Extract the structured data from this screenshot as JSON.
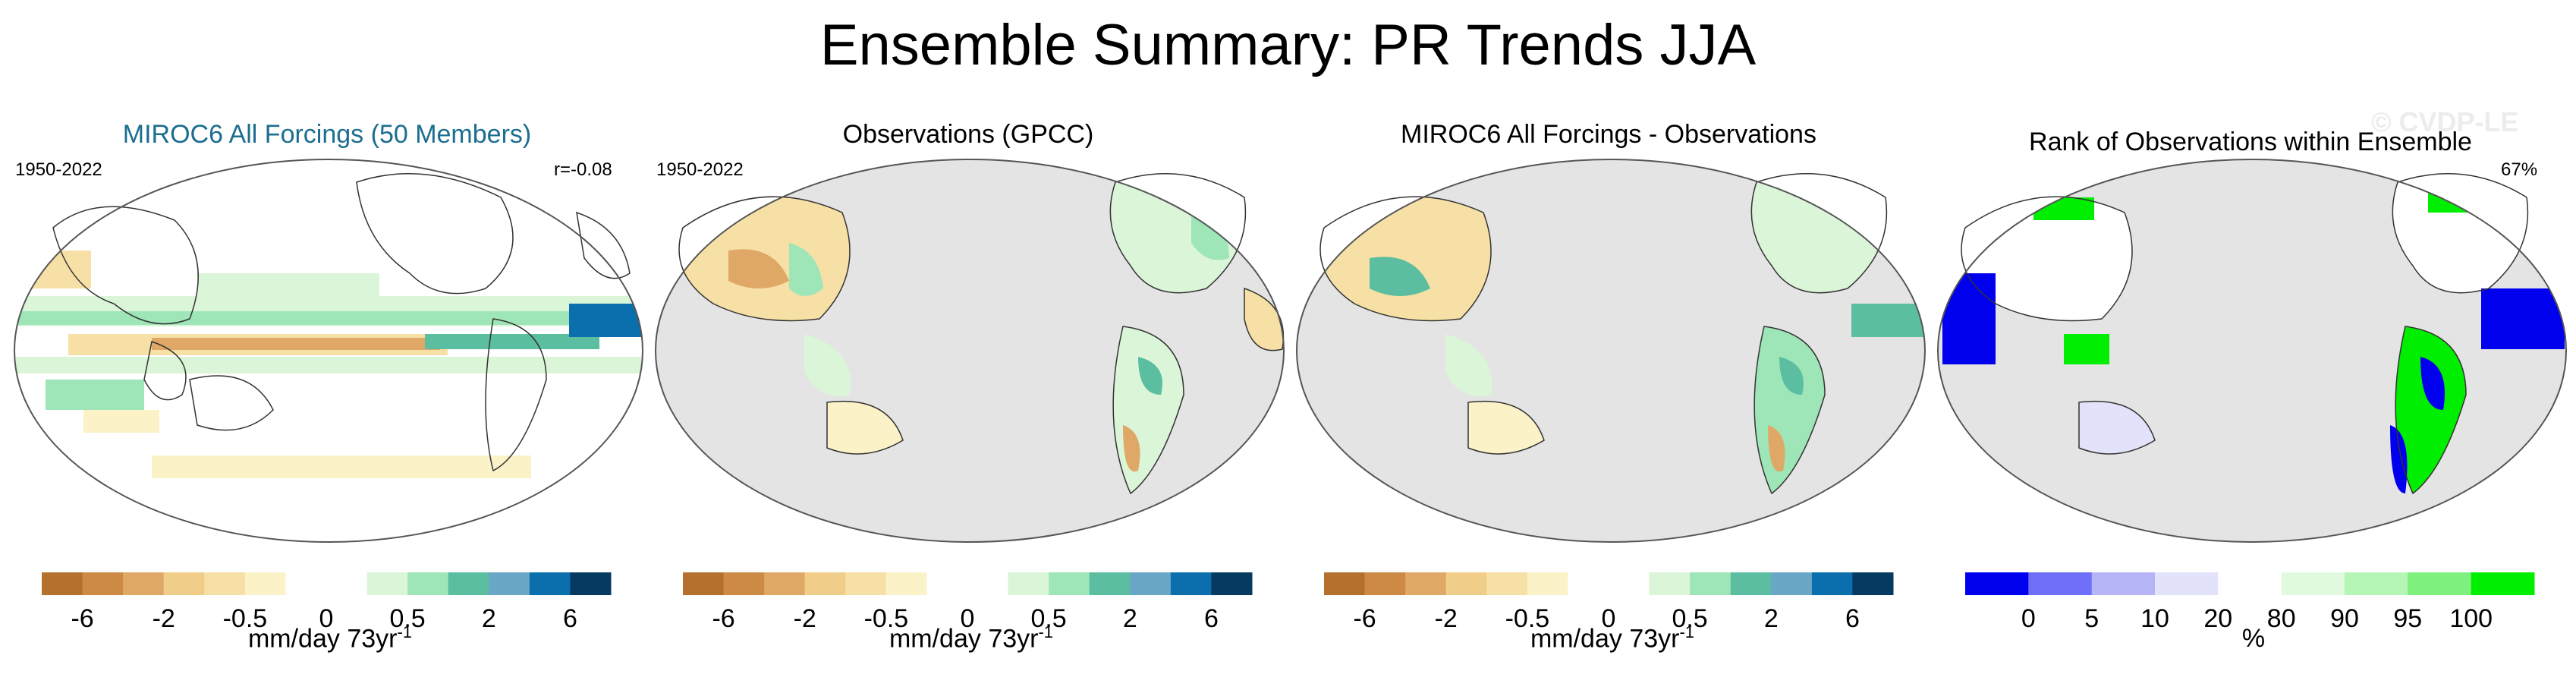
{
  "main_title": "Ensemble Summary: PR Trends JJA",
  "watermark": "© CVDP-LE",
  "panels": [
    {
      "title": "MIROC6 All Forcings (50 Members)",
      "left_label": "1950-2022",
      "right_label": "r=-0.08",
      "title_color": "#1b6e8f"
    },
    {
      "title": "Observations (GPCC)",
      "left_label": "1950-2022",
      "right_label": ""
    },
    {
      "title": "MIROC6 All Forcings - Observations",
      "left_label": "",
      "right_label": ""
    },
    {
      "title": "Rank of Observations within Ensemble",
      "left_label": "",
      "right_label": "67%"
    }
  ],
  "colorbars": [
    {
      "unit": "mm/day 73yr",
      "unit_sup": "-1",
      "colors": [
        "#b5702d",
        "#cd8a45",
        "#e0a866",
        "#f1cd8a",
        "#f6e0a5",
        "#fbf2c8",
        "#ffffff",
        "#ffffff",
        "#dbf5d8",
        "#9ee6b8",
        "#5cbea0",
        "#6aa6c5",
        "#0b6fae",
        "#073a60"
      ],
      "tick_labels": [
        "-6",
        "-2",
        "-0.5",
        "0",
        "0.5",
        "2",
        "6"
      ]
    },
    {
      "unit": "mm/day 73yr",
      "unit_sup": "-1",
      "colors": [
        "#b5702d",
        "#cd8a45",
        "#e0a866",
        "#f1cd8a",
        "#f6e0a5",
        "#fbf2c8",
        "#ffffff",
        "#ffffff",
        "#dbf5d8",
        "#9ee6b8",
        "#5cbea0",
        "#6aa6c5",
        "#0b6fae",
        "#073a60"
      ],
      "tick_labels": [
        "-6",
        "-2",
        "-0.5",
        "0",
        "0.5",
        "2",
        "6"
      ]
    },
    {
      "unit": "mm/day 73yr",
      "unit_sup": "-1",
      "colors": [
        "#b5702d",
        "#cd8a45",
        "#e0a866",
        "#f1cd8a",
        "#f6e0a5",
        "#fbf2c8",
        "#ffffff",
        "#ffffff",
        "#dbf5d8",
        "#9ee6b8",
        "#5cbea0",
        "#6aa6c5",
        "#0b6fae",
        "#073a60"
      ],
      "tick_labels": [
        "-6",
        "-2",
        "-0.5",
        "0",
        "0.5",
        "2",
        "6"
      ]
    },
    {
      "unit": "%",
      "unit_sup": "",
      "colors": [
        "#0000ee",
        "#6e6ef8",
        "#b4b4f6",
        "#e2e2fb",
        "#ffffff",
        "#e0fae0",
        "#b5f5b5",
        "#7ef07e",
        "#00ee00"
      ],
      "tick_labels": [
        "0",
        "5",
        "10",
        "20",
        "80",
        "90",
        "95",
        "100"
      ]
    }
  ],
  "chart_data": [
    {
      "type": "heatmap",
      "title": "MIROC6 All Forcings (50 Members)",
      "period": "1950-2022",
      "stat": "r=-0.08",
      "units": "mm/day 73yr-1",
      "color_levels": [
        -6,
        -2,
        -0.5,
        0,
        0.5,
        2,
        6
      ]
    },
    {
      "type": "heatmap",
      "title": "Observations (GPCC)",
      "period": "1950-2022",
      "units": "mm/day 73yr-1",
      "color_levels": [
        -6,
        -2,
        -0.5,
        0,
        0.5,
        2,
        6
      ]
    },
    {
      "type": "heatmap",
      "title": "MIROC6 All Forcings - Observations",
      "units": "mm/day 73yr-1",
      "color_levels": [
        -6,
        -2,
        -0.5,
        0,
        0.5,
        2,
        6
      ]
    },
    {
      "type": "heatmap",
      "title": "Rank of Observations within Ensemble",
      "stat": "67%",
      "units": "%",
      "color_levels": [
        0,
        5,
        10,
        20,
        80,
        90,
        95,
        100
      ]
    }
  ]
}
